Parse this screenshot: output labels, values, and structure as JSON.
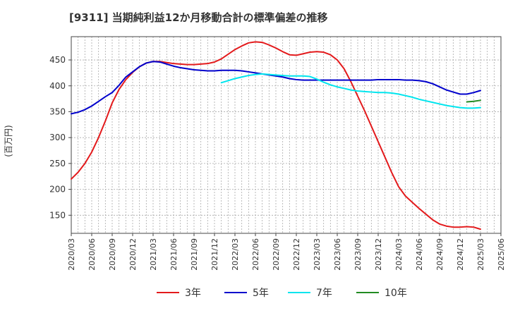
{
  "chart_data": {
    "type": "line",
    "title": "[9311]  当期純利益12か月移動合計の標準偏差の推移",
    "ylabel": "(百万円)",
    "xlabel": "",
    "ylim": [
      115,
      495
    ],
    "grid": true,
    "legend_placement": "bottom",
    "y_ticks": [
      150,
      200,
      250,
      300,
      350,
      400,
      450
    ],
    "x_ticks": [
      "2020/03",
      "2020/06",
      "2020/09",
      "2020/12",
      "2021/03",
      "2021/06",
      "2021/09",
      "2021/12",
      "2022/03",
      "2022/06",
      "2022/09",
      "2022/12",
      "2023/03",
      "2023/06",
      "2023/09",
      "2023/12",
      "2024/03",
      "2024/06",
      "2024/09",
      "2024/12",
      "2025/03",
      "2025/06"
    ],
    "series": [
      {
        "name": "3年",
        "color": "#e31a1c",
        "points": [
          [
            "2020/03",
            220
          ],
          [
            "2020/04",
            233
          ],
          [
            "2020/05",
            250
          ],
          [
            "2020/06",
            272
          ],
          [
            "2020/07",
            300
          ],
          [
            "2020/08",
            332
          ],
          [
            "2020/09",
            367
          ],
          [
            "2020/10",
            393
          ],
          [
            "2020/11",
            412
          ],
          [
            "2020/12",
            426
          ],
          [
            "2021/01",
            437
          ],
          [
            "2021/02",
            444
          ],
          [
            "2021/03",
            447
          ],
          [
            "2021/04",
            447
          ],
          [
            "2021/05",
            445
          ],
          [
            "2021/06",
            443
          ],
          [
            "2021/07",
            442
          ],
          [
            "2021/08",
            441
          ],
          [
            "2021/09",
            441
          ],
          [
            "2021/10",
            442
          ],
          [
            "2021/11",
            443
          ],
          [
            "2021/12",
            446
          ],
          [
            "2022/01",
            452
          ],
          [
            "2022/02",
            461
          ],
          [
            "2022/03",
            470
          ],
          [
            "2022/04",
            477
          ],
          [
            "2022/05",
            483
          ],
          [
            "2022/06",
            485
          ],
          [
            "2022/07",
            484
          ],
          [
            "2022/08",
            479
          ],
          [
            "2022/09",
            473
          ],
          [
            "2022/10",
            466
          ],
          [
            "2022/11",
            460
          ],
          [
            "2022/12",
            459
          ],
          [
            "2023/01",
            462
          ],
          [
            "2023/02",
            465
          ],
          [
            "2023/03",
            466
          ],
          [
            "2023/04",
            465
          ],
          [
            "2023/05",
            460
          ],
          [
            "2023/06",
            450
          ],
          [
            "2023/07",
            433
          ],
          [
            "2023/08",
            408
          ],
          [
            "2023/09",
            380
          ],
          [
            "2023/10",
            352
          ],
          [
            "2023/11",
            322
          ],
          [
            "2023/12",
            292
          ],
          [
            "2024/01",
            262
          ],
          [
            "2024/02",
            232
          ],
          [
            "2024/03",
            205
          ],
          [
            "2024/04",
            187
          ],
          [
            "2024/05",
            175
          ],
          [
            "2024/06",
            163
          ],
          [
            "2024/07",
            152
          ],
          [
            "2024/08",
            141
          ],
          [
            "2024/09",
            133
          ],
          [
            "2024/10",
            129
          ],
          [
            "2024/11",
            127
          ],
          [
            "2024/12",
            127
          ],
          [
            "2025/01",
            128
          ],
          [
            "2025/02",
            127
          ],
          [
            "2025/03",
            123
          ]
        ]
      },
      {
        "name": "5年",
        "color": "#0000cc",
        "points": [
          [
            "2020/03",
            346
          ],
          [
            "2020/04",
            349
          ],
          [
            "2020/05",
            354
          ],
          [
            "2020/06",
            361
          ],
          [
            "2020/07",
            370
          ],
          [
            "2020/08",
            379
          ],
          [
            "2020/09",
            387
          ],
          [
            "2020/10",
            401
          ],
          [
            "2020/11",
            417
          ],
          [
            "2020/12",
            427
          ],
          [
            "2021/01",
            437
          ],
          [
            "2021/02",
            444
          ],
          [
            "2021/03",
            447
          ],
          [
            "2021/04",
            446
          ],
          [
            "2021/05",
            442
          ],
          [
            "2021/06",
            438
          ],
          [
            "2021/07",
            435
          ],
          [
            "2021/08",
            433
          ],
          [
            "2021/09",
            431
          ],
          [
            "2021/10",
            430
          ],
          [
            "2021/11",
            429
          ],
          [
            "2021/12",
            429
          ],
          [
            "2022/01",
            430
          ],
          [
            "2022/02",
            430
          ],
          [
            "2022/03",
            430
          ],
          [
            "2022/04",
            429
          ],
          [
            "2022/05",
            427
          ],
          [
            "2022/06",
            425
          ],
          [
            "2022/07",
            423
          ],
          [
            "2022/08",
            421
          ],
          [
            "2022/09",
            419
          ],
          [
            "2022/10",
            417
          ],
          [
            "2022/11",
            414
          ],
          [
            "2022/12",
            412
          ],
          [
            "2023/01",
            411
          ],
          [
            "2023/02",
            411
          ],
          [
            "2023/03",
            411
          ],
          [
            "2023/04",
            411
          ],
          [
            "2023/05",
            411
          ],
          [
            "2023/06",
            411
          ],
          [
            "2023/07",
            411
          ],
          [
            "2023/08",
            411
          ],
          [
            "2023/09",
            411
          ],
          [
            "2023/10",
            411
          ],
          [
            "2023/11",
            411
          ],
          [
            "2023/12",
            412
          ],
          [
            "2024/01",
            412
          ],
          [
            "2024/02",
            412
          ],
          [
            "2024/03",
            412
          ],
          [
            "2024/04",
            411
          ],
          [
            "2024/05",
            411
          ],
          [
            "2024/06",
            410
          ],
          [
            "2024/07",
            408
          ],
          [
            "2024/08",
            404
          ],
          [
            "2024/09",
            398
          ],
          [
            "2024/10",
            392
          ],
          [
            "2024/11",
            388
          ],
          [
            "2024/12",
            384
          ],
          [
            "2025/01",
            384
          ],
          [
            "2025/02",
            387
          ],
          [
            "2025/03",
            391
          ]
        ]
      },
      {
        "name": "7年",
        "color": "#00e5ee",
        "points": [
          [
            "2022/01",
            406
          ],
          [
            "2022/02",
            410
          ],
          [
            "2022/03",
            414
          ],
          [
            "2022/04",
            417
          ],
          [
            "2022/05",
            420
          ],
          [
            "2022/06",
            422
          ],
          [
            "2022/07",
            423
          ],
          [
            "2022/08",
            422
          ],
          [
            "2022/09",
            421
          ],
          [
            "2022/10",
            420
          ],
          [
            "2022/11",
            419
          ],
          [
            "2022/12",
            419
          ],
          [
            "2023/01",
            419
          ],
          [
            "2023/02",
            418
          ],
          [
            "2023/03",
            413
          ],
          [
            "2023/04",
            407
          ],
          [
            "2023/05",
            402
          ],
          [
            "2023/06",
            398
          ],
          [
            "2023/07",
            395
          ],
          [
            "2023/08",
            392
          ],
          [
            "2023/09",
            390
          ],
          [
            "2023/10",
            389
          ],
          [
            "2023/11",
            388
          ],
          [
            "2023/12",
            387
          ],
          [
            "2024/01",
            387
          ],
          [
            "2024/02",
            386
          ],
          [
            "2024/03",
            384
          ],
          [
            "2024/04",
            381
          ],
          [
            "2024/05",
            378
          ],
          [
            "2024/06",
            374
          ],
          [
            "2024/07",
            371
          ],
          [
            "2024/08",
            368
          ],
          [
            "2024/09",
            365
          ],
          [
            "2024/10",
            362
          ],
          [
            "2024/11",
            360
          ],
          [
            "2024/12",
            358
          ],
          [
            "2025/01",
            357
          ],
          [
            "2025/02",
            357
          ],
          [
            "2025/03",
            358
          ]
        ]
      },
      {
        "name": "10年",
        "color": "#228b22",
        "points": [
          [
            "2025/01",
            369
          ],
          [
            "2025/02",
            370
          ],
          [
            "2025/03",
            372
          ]
        ]
      }
    ]
  }
}
